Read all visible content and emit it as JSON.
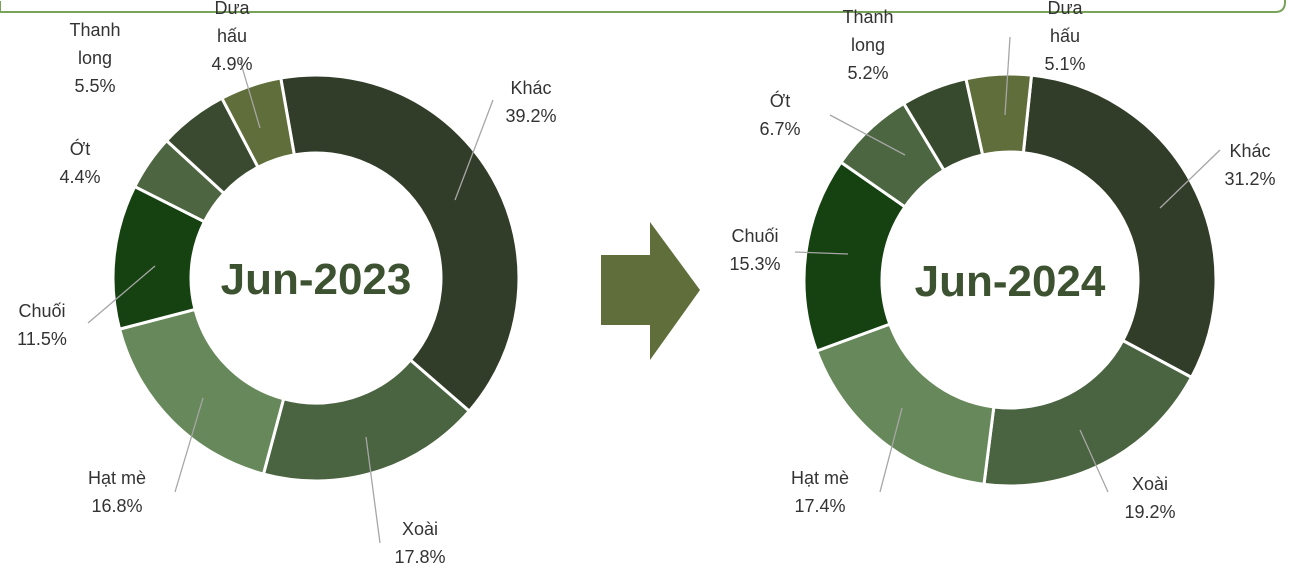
{
  "chart_data": [
    {
      "type": "donut",
      "title": "Jun-2023",
      "categories": [
        "Khác",
        "Xoài",
        "Hạt mè",
        "Chuối",
        "Ớt",
        "Thanh long",
        "Dưa hấu"
      ],
      "values": [
        39.2,
        17.8,
        16.8,
        11.5,
        4.4,
        5.5,
        4.9
      ],
      "value_labels": [
        "39.2%",
        "17.8%",
        "16.8%",
        "11.5%",
        "4.4%",
        "5.5%",
        "4.9%"
      ],
      "colors": [
        "#323d29",
        "#4a6340",
        "#67885a",
        "#164212",
        "#4d6540",
        "#3a4a30",
        "#5f6e3a"
      ]
    },
    {
      "type": "donut",
      "title": "Jun-2024",
      "categories": [
        "Khác",
        "Xoài",
        "Hạt mè",
        "Chuối",
        "Ớt",
        "Thanh long",
        "Dưa hấu"
      ],
      "values": [
        31.2,
        19.2,
        17.4,
        15.3,
        6.7,
        5.2,
        5.1
      ],
      "value_labels": [
        "31.2%",
        "19.2%",
        "17.4%",
        "15.3%",
        "6.7%",
        "5.2%",
        "5.1%"
      ],
      "colors": [
        "#323d29",
        "#4a6340",
        "#67885a",
        "#164212",
        "#4b6640",
        "#384a2e",
        "#5f6e3a"
      ]
    }
  ]
}
